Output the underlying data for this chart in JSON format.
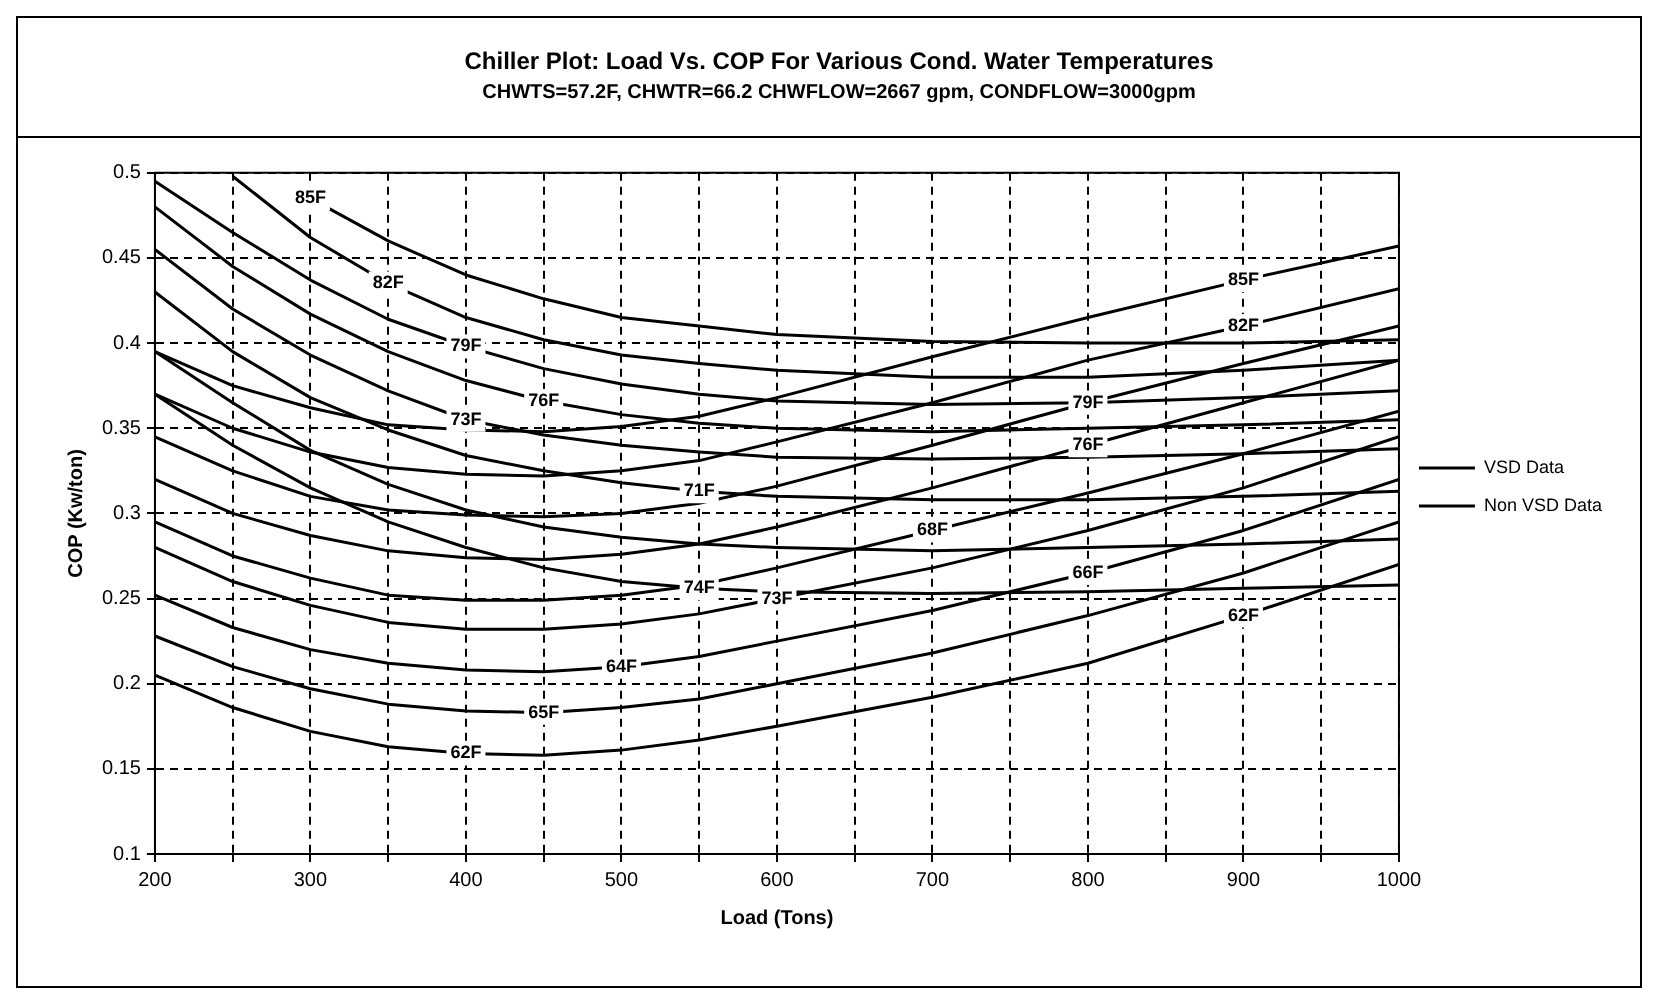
{
  "chart_data": {
    "type": "line",
    "title": "Chiller Plot: Load Vs. COP For Various Cond. Water Temperatures",
    "subtitle": "CHWTS=57.2F, CHWTR=66.2 CHWFLOW=2667 gpm, CONDFLOW=3000gpm",
    "xlabel": "Load (Tons)",
    "ylabel": "COP (Kw/ton)",
    "x": [
      200,
      250,
      300,
      350,
      400,
      450,
      500,
      550,
      600,
      700,
      800,
      900,
      1000
    ],
    "xlim": [
      200,
      1000
    ],
    "xticks": [
      200,
      {
        "value": 250,
        "label": null
      },
      300,
      {
        "value": 350,
        "label": null
      },
      400,
      {
        "value": 450,
        "label": null
      },
      500,
      {
        "value": 550,
        "label": null
      },
      600,
      {
        "value": 650,
        "label": null
      },
      700,
      {
        "value": 750,
        "label": null
      },
      800,
      {
        "value": 850,
        "label": null
      },
      900,
      {
        "value": 950,
        "label": null
      },
      1000
    ],
    "ylim": [
      0.1,
      0.5
    ],
    "yticks": [
      0.1,
      0.15,
      0.2,
      0.25,
      0.3,
      0.35,
      0.4,
      0.45,
      0.5
    ],
    "grid": true,
    "legend": "right",
    "marker": "none",
    "line_style": "solid",
    "series": [
      {
        "name": "VSD Data",
        "color": "#000000",
        "values": [
          0.205,
          0.186,
          0.172,
          0.163,
          0.159,
          0.158,
          0.161,
          0.167,
          0.175,
          0.192,
          0.212,
          0.24,
          0.27
        ]
      },
      {
        "color": "#000000",
        "values": [
          0.228,
          0.21,
          0.197,
          0.188,
          0.184,
          0.183,
          0.186,
          0.191,
          0.2,
          0.218,
          0.24,
          0.265,
          0.295
        ]
      },
      {
        "color": "#000000",
        "values": [
          0.252,
          0.233,
          0.22,
          0.212,
          0.208,
          0.207,
          0.21,
          0.216,
          0.225,
          0.243,
          0.265,
          0.29,
          0.32
        ]
      },
      {
        "color": "#000000",
        "values": [
          0.28,
          0.26,
          0.246,
          0.236,
          0.232,
          0.232,
          0.235,
          0.241,
          0.25,
          0.268,
          0.29,
          0.315,
          0.345
        ]
      },
      {
        "color": "#000000",
        "values": [
          0.295,
          0.275,
          0.262,
          0.252,
          0.249,
          0.249,
          0.252,
          0.258,
          0.268,
          0.29,
          0.312,
          0.335,
          0.36
        ]
      },
      {
        "color": "#000000",
        "values": [
          0.32,
          0.3,
          0.287,
          0.278,
          0.274,
          0.273,
          0.276,
          0.282,
          0.292,
          0.315,
          0.34,
          0.365,
          0.39
        ]
      },
      {
        "color": "#000000",
        "values": [
          0.345,
          0.325,
          0.31,
          0.302,
          0.299,
          0.298,
          0.3,
          0.306,
          0.316,
          0.34,
          0.365,
          0.388,
          0.41
        ]
      },
      {
        "color": "#000000",
        "values": [
          0.37,
          0.35,
          0.336,
          0.327,
          0.323,
          0.322,
          0.325,
          0.331,
          0.342,
          0.365,
          0.39,
          0.41,
          0.432
        ]
      },
      {
        "color": "#000000",
        "values": [
          0.395,
          0.375,
          0.362,
          0.352,
          0.349,
          0.348,
          0.351,
          0.357,
          0.368,
          0.392,
          0.415,
          0.437,
          0.457
        ]
      },
      {
        "name": "Non VSD Data",
        "color": "#000000",
        "values": [
          null,
          null,
          0.485,
          0.46,
          0.44,
          0.426,
          0.415,
          0.41,
          0.405,
          0.401,
          0.4,
          0.4,
          0.402
        ]
      },
      {
        "color": "#000000",
        "values": [
          null,
          0.498,
          0.462,
          0.435,
          0.415,
          0.402,
          0.393,
          0.388,
          0.384,
          0.38,
          0.38,
          0.384,
          0.39
        ]
      },
      {
        "color": "#000000",
        "values": [
          0.495,
          0.465,
          0.437,
          0.414,
          0.398,
          0.385,
          0.376,
          0.37,
          0.366,
          0.364,
          0.365,
          0.368,
          0.372
        ]
      },
      {
        "color": "#000000",
        "values": [
          0.48,
          0.445,
          0.417,
          0.395,
          0.378,
          0.366,
          0.358,
          0.353,
          0.35,
          0.348,
          0.35,
          0.352,
          0.355
        ]
      },
      {
        "color": "#000000",
        "values": [
          0.455,
          0.42,
          0.393,
          0.372,
          0.355,
          0.346,
          0.34,
          0.336,
          0.333,
          0.332,
          0.333,
          0.335,
          0.338
        ]
      },
      {
        "color": "#000000",
        "values": [
          0.43,
          0.395,
          0.368,
          0.349,
          0.334,
          0.325,
          0.318,
          0.313,
          0.31,
          0.308,
          0.308,
          0.31,
          0.313
        ]
      },
      {
        "color": "#000000",
        "values": [
          0.395,
          0.365,
          0.337,
          0.317,
          0.302,
          0.292,
          0.286,
          0.282,
          0.28,
          0.278,
          0.28,
          0.282,
          0.285
        ]
      },
      {
        "color": "#000000",
        "values": [
          0.37,
          0.34,
          0.315,
          0.295,
          0.28,
          0.268,
          0.26,
          0.256,
          0.254,
          0.253,
          0.254,
          0.256,
          0.258
        ]
      }
    ],
    "annotations": [
      {
        "text": "85F",
        "x": 300,
        "y": 0.485
      },
      {
        "text": "82F",
        "x": 350,
        "y": 0.435
      },
      {
        "text": "79F",
        "x": 400,
        "y": 0.398
      },
      {
        "text": "76F",
        "x": 450,
        "y": 0.366
      },
      {
        "text": "73F",
        "x": 400,
        "y": 0.355
      },
      {
        "text": "71F",
        "x": 550,
        "y": 0.313
      },
      {
        "text": "74F",
        "x": 550,
        "y": 0.256
      },
      {
        "text": "64F",
        "x": 500,
        "y": 0.21
      },
      {
        "text": "65F",
        "x": 450,
        "y": 0.183
      },
      {
        "text": "62F",
        "x": 400,
        "y": 0.159
      },
      {
        "text": "85F",
        "x": 900,
        "y": 0.437
      },
      {
        "text": "82F",
        "x": 900,
        "y": 0.41
      },
      {
        "text": "79F",
        "x": 800,
        "y": 0.365
      },
      {
        "text": "76F",
        "x": 800,
        "y": 0.34
      },
      {
        "text": "68F",
        "x": 700,
        "y": 0.29
      },
      {
        "text": "73F",
        "x": 600,
        "y": 0.25
      },
      {
        "text": "66F",
        "x": 800,
        "y": 0.265
      },
      {
        "text": "62F",
        "x": 900,
        "y": 0.24
      }
    ]
  }
}
